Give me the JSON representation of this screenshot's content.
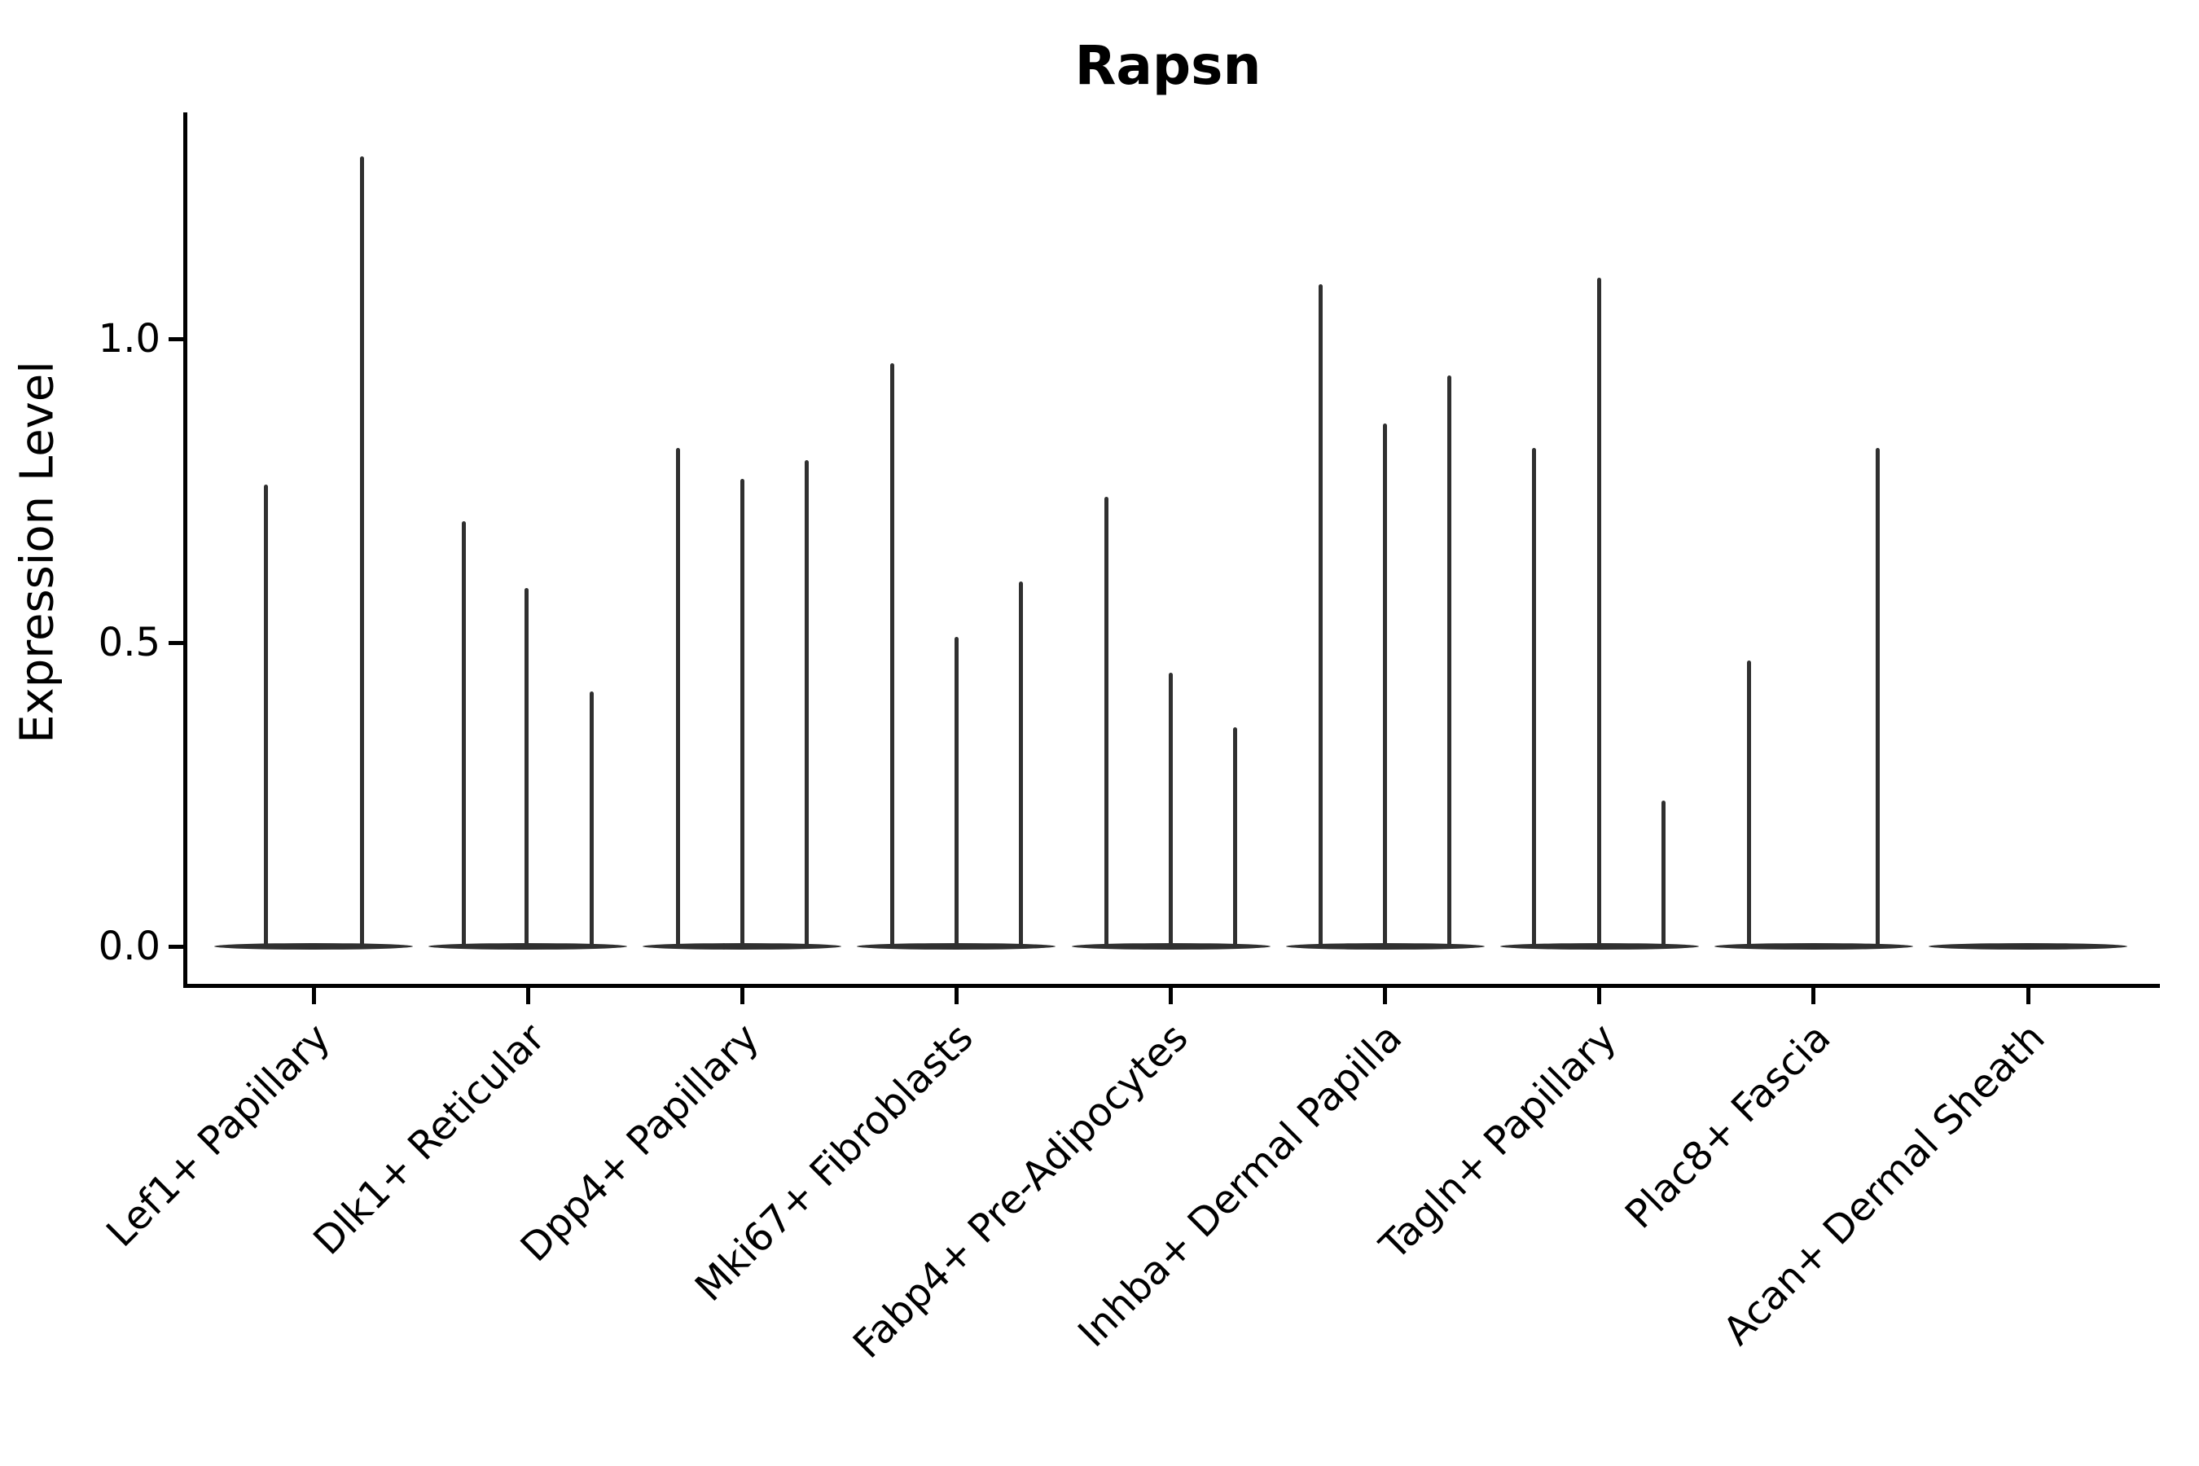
{
  "chart_data": {
    "type": "violin",
    "title": "Rapsn",
    "xlabel": "",
    "ylabel": "Expression Level",
    "legend": "none",
    "grid": false,
    "ylim": [
      -0.06,
      1.37
    ],
    "yticks": [
      {
        "label": "0.0",
        "value": 0.0
      },
      {
        "label": "0.5",
        "value": 0.5
      },
      {
        "label": "1.0",
        "value": 1.0
      }
    ],
    "violin_color": "#303030",
    "axis_color": "#000000",
    "categories": [
      {
        "label": "Lef1+ Papillary",
        "spikes": [
          {
            "x_offset": -59,
            "value": 0.76
          },
          {
            "x_offset": 59,
            "value": 1.3
          }
        ]
      },
      {
        "label": "Dlk1+ Reticular",
        "spikes": [
          {
            "x_offset": -79,
            "value": 0.7
          },
          {
            "x_offset": -2,
            "value": 0.59
          },
          {
            "x_offset": 78,
            "value": 0.42
          }
        ]
      },
      {
        "label": "Dpp4+ Papillary",
        "spikes": [
          {
            "x_offset": -79,
            "value": 0.82
          },
          {
            "x_offset": 0,
            "value": 0.77
          },
          {
            "x_offset": 79,
            "value": 0.8
          }
        ]
      },
      {
        "label": "Mki67+ Fibroblasts",
        "spikes": [
          {
            "x_offset": -79,
            "value": 0.96
          },
          {
            "x_offset": 0,
            "value": 0.51
          },
          {
            "x_offset": 79,
            "value": 0.6
          }
        ]
      },
      {
        "label": "Fabp4+ Pre-Adipocytes",
        "spikes": [
          {
            "x_offset": -79,
            "value": 0.74
          },
          {
            "x_offset": 0,
            "value": 0.45
          },
          {
            "x_offset": 79,
            "value": 0.36
          }
        ]
      },
      {
        "label": "Inhba+ Dermal Papilla",
        "spikes": [
          {
            "x_offset": -79,
            "value": 1.09
          },
          {
            "x_offset": 0,
            "value": 0.86
          },
          {
            "x_offset": 79,
            "value": 0.94
          }
        ]
      },
      {
        "label": "Tagln+ Papillary",
        "spikes": [
          {
            "x_offset": -80,
            "value": 0.82
          },
          {
            "x_offset": 0,
            "value": 1.1
          },
          {
            "x_offset": 79,
            "value": 0.24
          }
        ]
      },
      {
        "label": "Plac8+ Fascia",
        "spikes": [
          {
            "x_offset": -79,
            "value": 0.47
          },
          {
            "x_offset": 79,
            "value": 0.82
          }
        ]
      },
      {
        "label": "Acan+ Dermal Sheath",
        "spikes": []
      }
    ]
  }
}
